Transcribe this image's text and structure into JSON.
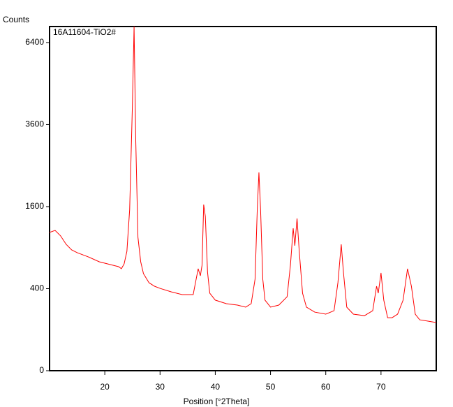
{
  "chart_data": {
    "type": "line",
    "y_label": "Counts",
    "x_label": "Position [°2Theta]",
    "annotation": "16A11604-TiO2#",
    "yscale": "sqrt",
    "xlim": [
      10,
      80
    ],
    "xticks": [
      20,
      30,
      40,
      50,
      60,
      70
    ],
    "ylim": [
      0,
      7040
    ],
    "yticks": [
      0,
      400,
      1600,
      3600,
      6400
    ],
    "series": [
      {
        "name": "16A11604-TiO2#",
        "color": "#ff0000",
        "x": [
          10,
          11,
          12,
          13,
          14,
          15,
          17,
          19,
          21,
          22.5,
          23,
          23.5,
          24,
          24.5,
          25,
          25.3,
          25.6,
          26,
          26.5,
          27,
          28,
          29,
          30,
          32,
          34,
          36,
          36.9,
          37.3,
          37.6,
          37.9,
          38.2,
          38.6,
          39,
          40,
          42,
          44,
          45.5,
          46.5,
          47.2,
          47.6,
          47.9,
          48.2,
          48.6,
          49,
          50,
          51.5,
          53,
          53.6,
          54.1,
          54.4,
          54.8,
          55.2,
          55.8,
          56.5,
          58,
          60,
          61.5,
          62.2,
          62.8,
          63.2,
          63.8,
          65,
          67,
          68.5,
          69.2,
          69.5,
          70,
          70.5,
          71.2,
          72,
          73,
          74,
          74.8,
          75.5,
          76.2,
          77,
          78.5,
          80
        ],
        "values": [
          1136,
          1170,
          1080,
          949,
          867,
          828,
          770,
          705,
          669,
          643,
          618,
          678,
          847,
          1545,
          4207,
          7040,
          3174,
          1057,
          705,
          560,
          460,
          424,
          403,
          370,
          344,
          344,
          618,
          535,
          660,
          1640,
          1415,
          576,
          357,
          296,
          267,
          256,
          240,
          267,
          497,
          1545,
          2336,
          1545,
          497,
          296,
          240,
          256,
          325,
          660,
          1205,
          928,
          1377,
          847,
          357,
          240,
          204,
          190,
          214,
          460,
          949,
          576,
          240,
          190,
          180,
          214,
          424,
          357,
          568,
          296,
          167,
          167,
          190,
          296,
          618,
          424,
          190,
          154,
          146,
          138
        ]
      }
    ]
  }
}
